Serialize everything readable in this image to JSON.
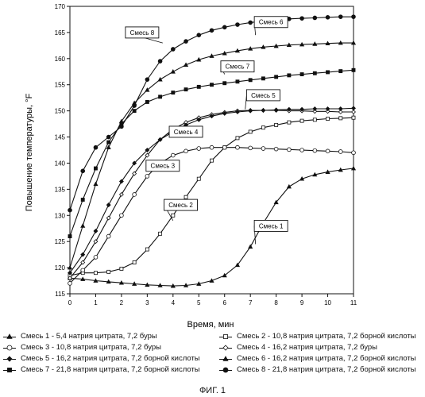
{
  "chart_data": {
    "type": "line",
    "xlabel": "Время, мин",
    "ylabel": "Повышение температуры, °F",
    "xlim": [
      0,
      11
    ],
    "ylim": [
      115,
      170
    ],
    "xticks": [
      0,
      1,
      2,
      3,
      4,
      5,
      6,
      7,
      8,
      9,
      10,
      11
    ],
    "yticks": [
      115,
      120,
      125,
      130,
      135,
      140,
      145,
      150,
      155,
      160,
      165,
      170
    ],
    "grid": false,
    "legend_placement": "bottom",
    "series": [
      {
        "name": "Смесь 1",
        "label": "Смесь 1 - 5,4 натрия цитрата, 7,2 буры",
        "marker": "triangle",
        "x": [
          0,
          0.5,
          1,
          1.5,
          2,
          2.5,
          3,
          3.5,
          4,
          4.5,
          5,
          5.5,
          6,
          6.5,
          7,
          7.5,
          8,
          8.5,
          9,
          9.5,
          10,
          10.5,
          11
        ],
        "y": [
          118,
          117.8,
          117.5,
          117.3,
          117.1,
          116.9,
          116.7,
          116.6,
          116.5,
          116.6,
          116.9,
          117.5,
          118.5,
          120.5,
          124,
          128.5,
          132.5,
          135.5,
          137,
          137.8,
          138.3,
          138.7,
          139
        ]
      },
      {
        "name": "Смесь 2",
        "label": "Смесь 2 - 10,8 натрия цитрата, 7,2 борной кислоты",
        "marker": "square-open",
        "x": [
          0,
          0.5,
          1,
          1.5,
          2,
          2.5,
          3,
          3.5,
          4,
          4.5,
          5,
          5.5,
          6,
          6.5,
          7,
          7.5,
          8,
          8.5,
          9,
          9.5,
          10,
          10.5,
          11
        ],
        "y": [
          118.5,
          119,
          119,
          119.2,
          119.8,
          121,
          123.5,
          126.5,
          130,
          133.5,
          137,
          140.5,
          143,
          144.8,
          146,
          146.8,
          147.3,
          147.8,
          148.1,
          148.3,
          148.5,
          148.6,
          148.7
        ]
      },
      {
        "name": "Смесь 3",
        "label": "Смесь 3 - 10,8 натрия цитрата, 7,2 буры",
        "marker": "circle-open",
        "x": [
          0,
          0.5,
          1,
          1.5,
          2,
          2.5,
          3,
          3.5,
          4,
          4.5,
          5,
          5.5,
          6,
          6.5,
          7,
          7.5,
          8,
          8.5,
          9,
          9.5,
          10,
          10.5,
          11
        ],
        "y": [
          117,
          119.5,
          122,
          126,
          130,
          134,
          137.5,
          140,
          141.5,
          142.3,
          142.8,
          143,
          143,
          143,
          142.9,
          142.8,
          142.7,
          142.6,
          142.5,
          142.4,
          142.3,
          142.2,
          142
        ]
      },
      {
        "name": "Смесь 4",
        "label": "Смесь 4 - 16,2 натрия цитрата, 7,2 буры",
        "marker": "diamond-open",
        "x": [
          0,
          0.5,
          1,
          1.5,
          2,
          2.5,
          3,
          3.5,
          4,
          4.5,
          5,
          5.5,
          6,
          6.5,
          7,
          7.5,
          8,
          8.5,
          9,
          9.5,
          10,
          10.5,
          11
        ],
        "y": [
          118,
          121,
          125,
          129.5,
          134,
          138,
          141.5,
          144.5,
          146.5,
          147.8,
          148.7,
          149.3,
          149.7,
          150,
          150.1,
          150.1,
          150.1,
          150,
          150,
          149.9,
          149.9,
          149.8,
          149.8
        ]
      },
      {
        "name": "Смесь 5",
        "label": "Смесь 5 - 16,2 натрия цитрата, 7,2 борной кислоты",
        "marker": "diamond",
        "x": [
          0,
          0.5,
          1,
          1.5,
          2,
          2.5,
          3,
          3.5,
          4,
          4.5,
          5,
          5.5,
          6,
          6.5,
          7,
          7.5,
          8,
          8.5,
          9,
          9.5,
          10,
          10.5,
          11
        ],
        "y": [
          119,
          122.5,
          127,
          132,
          136.5,
          140,
          142.5,
          144.5,
          146,
          147.3,
          148.3,
          149,
          149.5,
          149.8,
          150,
          150.1,
          150.2,
          150.3,
          150.3,
          150.4,
          150.4,
          150.4,
          150.5
        ]
      },
      {
        "name": "Смесь 6",
        "label": "Смесь 6 - 16,2 натрия цитрата, 7,2 борной кислоты",
        "marker": "triangle",
        "x": [
          0,
          0.5,
          1,
          1.5,
          2,
          2.5,
          3,
          3.5,
          4,
          4.5,
          5,
          5.5,
          6,
          6.5,
          7,
          7.5,
          8,
          8.5,
          9,
          9.5,
          10,
          10.5,
          11
        ],
        "y": [
          120,
          128,
          136,
          143,
          148,
          151.5,
          154,
          156,
          157.5,
          158.8,
          159.8,
          160.5,
          161,
          161.5,
          161.9,
          162.2,
          162.4,
          162.6,
          162.7,
          162.8,
          162.9,
          163,
          163
        ]
      },
      {
        "name": "Смесь 7",
        "label": "Смесь 7 - 21,8 натрия цитрата, 7,2 борной кислоты",
        "marker": "square",
        "x": [
          0,
          0.5,
          1,
          1.5,
          2,
          2.5,
          3,
          3.5,
          4,
          4.5,
          5,
          5.5,
          6,
          6.5,
          7,
          7.5,
          8,
          8.5,
          9,
          9.5,
          10,
          10.5,
          11
        ],
        "y": [
          126,
          133,
          139,
          144,
          147.5,
          150,
          151.7,
          152.7,
          153.5,
          154.1,
          154.6,
          155,
          155.3,
          155.6,
          155.9,
          156.2,
          156.5,
          156.8,
          157,
          157.2,
          157.4,
          157.6,
          157.8
        ]
      },
      {
        "name": "Смесь 8",
        "label": "Смесь 8 - 21,8 натрия цитрата, 7,2 борной кислоты",
        "marker": "circle",
        "x": [
          0,
          0.5,
          1,
          1.5,
          2,
          2.5,
          3,
          3.5,
          4,
          4.5,
          5,
          5.5,
          6,
          6.5,
          7,
          7.5,
          8,
          8.5,
          9,
          9.5,
          10,
          10.5,
          11
        ],
        "y": [
          131,
          138.5,
          143,
          145,
          147,
          151,
          156,
          159.5,
          161.8,
          163.3,
          164.5,
          165.4,
          166,
          166.5,
          166.9,
          167.2,
          167.4,
          167.6,
          167.7,
          167.8,
          167.9,
          168,
          168
        ]
      }
    ],
    "annotations": [
      {
        "text": "Смесь 1",
        "x": 7.8,
        "y": 128,
        "target_x": 7.2,
        "target_y": 124.5
      },
      {
        "text": "Смесь 2",
        "x": 4.3,
        "y": 132,
        "target_x": 4.0,
        "target_y": 129
      },
      {
        "text": "Смесь 3",
        "x": 3.6,
        "y": 139.5,
        "target_x": 3.1,
        "target_y": 138.5
      },
      {
        "text": "Смесь 4",
        "x": 4.5,
        "y": 146,
        "target_x": 3.8,
        "target_y": 145.5
      },
      {
        "text": "Смесь 5",
        "x": 7.5,
        "y": 153,
        "target_x": 6.8,
        "target_y": 150.3
      },
      {
        "text": "Смесь 6",
        "x": 7.8,
        "y": 167,
        "target_x": 7.2,
        "target_y": 164.5
      },
      {
        "text": "Смесь 7",
        "x": 6.5,
        "y": 158.5,
        "target_x": 6.0,
        "target_y": 157
      },
      {
        "text": "Смесь 8",
        "x": 2.8,
        "y": 165,
        "target_x": 3.6,
        "target_y": 163
      }
    ]
  },
  "figure_caption": "ФИГ. 1"
}
